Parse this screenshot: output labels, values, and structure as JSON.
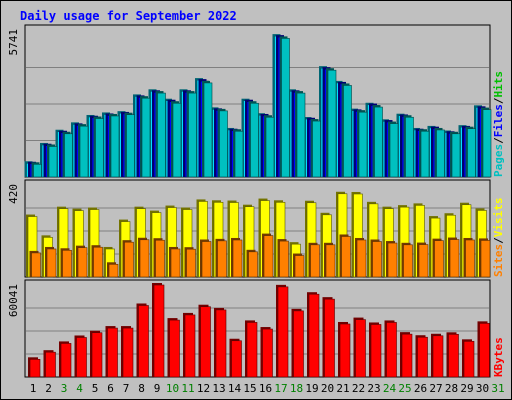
{
  "chart_data": {
    "type": "bar",
    "title": "Daily usage for September 2022",
    "categories": [
      "1",
      "2",
      "3",
      "4",
      "5",
      "6",
      "7",
      "8",
      "9",
      "10",
      "11",
      "12",
      "13",
      "14",
      "15",
      "16",
      "17",
      "18",
      "19",
      "20",
      "21",
      "22",
      "23",
      "24",
      "25",
      "26",
      "27",
      "28",
      "29",
      "30",
      "31"
    ],
    "weekend_days": [
      "3",
      "4",
      "10",
      "11",
      "17",
      "18",
      "24",
      "25",
      "31"
    ],
    "panels": [
      {
        "name": "top",
        "ymax_label": "5741",
        "ymax": 5741,
        "legend": [
          "Pages",
          "Files",
          "Hits"
        ],
        "series": [
          {
            "name": "Hits",
            "color": "#00e0ff",
            "values": [
              540,
              1260,
              1780,
              2070,
              2360,
              2460,
              2510,
              3170,
              3370,
              3000,
              3370,
              3810,
              2660,
              1850,
              3000,
              2430,
              5540,
              3370,
              2280,
              4280,
              3700,
              2610,
              2840,
              2190,
              2410,
              1850,
              1930,
              1750,
              1960,
              2740,
              0
            ]
          },
          {
            "name": "Files",
            "color": "#0000ff",
            "values": [
              520,
              1230,
              1740,
              2030,
              2330,
              2420,
              2480,
              3130,
              3330,
              2960,
              3330,
              3770,
              2620,
              1820,
              2960,
              2400,
              5500,
              3330,
              2250,
              4240,
              3660,
              2580,
              2810,
              2160,
              2380,
              1820,
              1900,
              1720,
              1930,
              2700,
              0
            ]
          },
          {
            "name": "Pages",
            "color": "#00c0c0",
            "values": [
              500,
              1200,
              1700,
              2000,
              2300,
              2400,
              2450,
              3100,
              3300,
              2900,
              3300,
              3700,
              2600,
              1800,
              2900,
              2350,
              5450,
              3300,
              2200,
              4200,
              3600,
              2550,
              2750,
              2100,
              2350,
              1800,
              1850,
              1700,
              1900,
              2650,
              0
            ]
          }
        ]
      },
      {
        "name": "middle",
        "ymax_label": "420",
        "ymax": 420,
        "legend": [
          "Sites",
          "Visits"
        ],
        "series": [
          {
            "name": "Visits",
            "color": "#ffff00",
            "values": [
              276,
              181,
              312,
              303,
              308,
              128,
              253,
              312,
              294,
              317,
              308,
              345,
              341,
              340,
              321,
              349,
              341,
              150,
              339,
              284,
              380,
              379,
              334,
              312,
              319,
              327,
              269,
              282,
              330,
              304,
              0
            ]
          },
          {
            "name": "Sites",
            "color": "#ff8000",
            "values": [
              110,
              128,
              122,
              134,
              136,
              58,
              159,
              170,
              168,
              128,
              127,
              162,
              165,
              169,
              115,
              189,
              164,
              98,
              147,
              147,
              185,
              169,
              162,
              155,
              147,
              148,
              166,
              171,
              169,
              167,
              0
            ]
          }
        ]
      },
      {
        "name": "bottom",
        "ymax_label": "60041",
        "ymax": 60041,
        "legend": [
          "KBytes"
        ],
        "series": [
          {
            "name": "KBytes",
            "color": "#ff0000",
            "values": [
              11540,
              16200,
              21920,
              25790,
              28910,
              31930,
              31930,
              46670,
              60041,
              37140,
              40520,
              45870,
              43790,
              23660,
              35630,
              31300,
              58830,
              43160,
              54040,
              50810,
              34600,
              37470,
              34280,
              35610,
              27970,
              25960,
              26910,
              27860,
              23280,
              35010,
              0
            ]
          }
        ]
      }
    ]
  }
}
